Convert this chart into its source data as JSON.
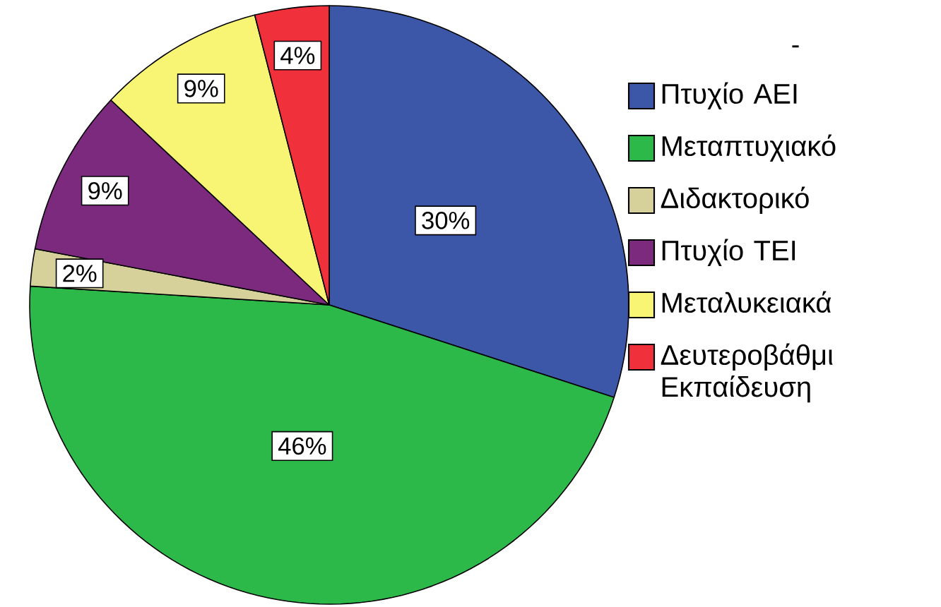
{
  "chart_data": {
    "type": "pie",
    "legend_title": "-",
    "categories": [
      "Πτυχίο ΑΕΙ",
      "Μεταπτυχιακό",
      "Διδακτορικό",
      "Πτυχίο ΤΕΙ",
      "Μεταλυκειακά",
      "Δευτεροβάθμι Εκπαίδευση"
    ],
    "values": [
      30,
      46,
      2,
      9,
      9,
      4
    ],
    "colors": [
      "#3c56a8",
      "#2db84a",
      "#d6d09a",
      "#7b2a7e",
      "#f8f575",
      "#f0303a"
    ],
    "value_labels": [
      "30%",
      "46%",
      "2%",
      "9%",
      "9%",
      "4%"
    ],
    "legend": "right"
  }
}
